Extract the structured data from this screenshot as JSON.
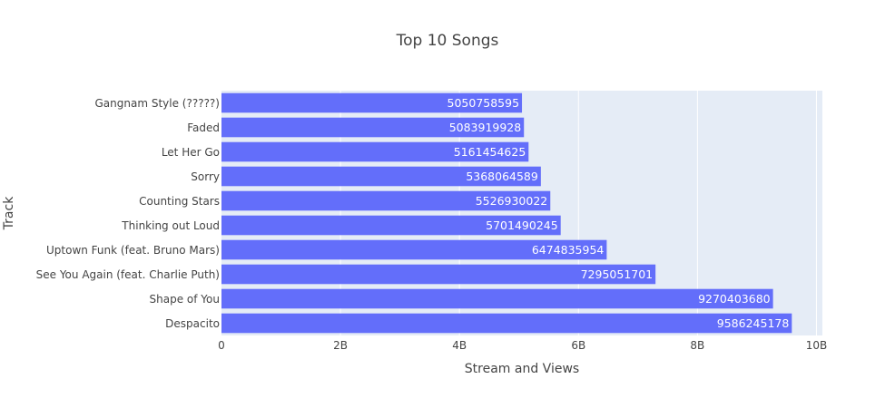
{
  "chart_data": {
    "type": "bar",
    "orientation": "horizontal",
    "title": "Top 10 Songs",
    "xlabel": "Stream and Views",
    "ylabel": "Track",
    "xlim": [
      0,
      10100000000
    ],
    "xticks": [
      0,
      2000000000,
      4000000000,
      6000000000,
      8000000000,
      10000000000
    ],
    "xtick_labels": [
      "0",
      "2B",
      "4B",
      "6B",
      "8B",
      "10B"
    ],
    "grid": true,
    "bar_color": "#636efa",
    "plot_bg": "#e5ecf6",
    "categories": [
      "Gangnam Style (?????)",
      "Faded",
      "Let Her Go",
      "Sorry",
      "Counting Stars",
      "Thinking out Loud",
      "Uptown Funk (feat. Bruno Mars)",
      "See You Again (feat. Charlie Puth)",
      "Shape of You",
      "Despacito"
    ],
    "values": [
      5050758595,
      5083919928,
      5161454625,
      5368064589,
      5526930022,
      5701490245,
      6474835954,
      7295051701,
      9270403680,
      9586245178
    ]
  }
}
